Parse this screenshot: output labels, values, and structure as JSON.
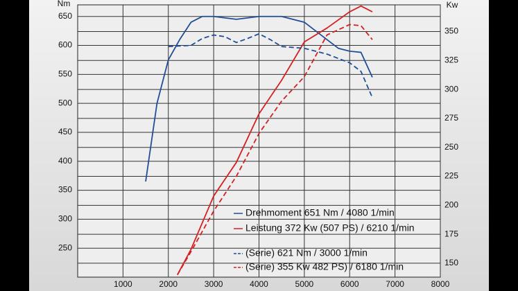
{
  "chart_data": {
    "type": "line",
    "y_label": "Nm",
    "y2_label": "Kw",
    "xlim": [
      0,
      8000
    ],
    "xticks": [
      1000,
      2000,
      3000,
      4000,
      5000,
      6000,
      7000,
      8000
    ],
    "ylim": [
      200,
      670
    ],
    "yticks": [
      250,
      300,
      350,
      400,
      450,
      500,
      550,
      600,
      650
    ],
    "y2lim": [
      138,
      373
    ],
    "y2ticks": [
      150,
      175,
      200,
      225,
      250,
      275,
      300,
      325,
      350
    ],
    "grid": true,
    "series": [
      {
        "name": "Drehmoment 651 Nm / 4080 1/min",
        "color": "#1f4e96",
        "dash": false,
        "axis": "y",
        "x": [
          1500,
          1750,
          2000,
          2250,
          2500,
          2750,
          3000,
          3500,
          4000,
          4500,
          5000,
          5500,
          5750,
          6000,
          6250,
          6500
        ],
        "values": [
          365,
          500,
          575,
          610,
          640,
          650,
          650,
          645,
          650,
          650,
          640,
          610,
          595,
          590,
          588,
          545
        ]
      },
      {
        "name": "Leistung 372 Kw (507 PS) / 6210 1/min",
        "color": "#d42020",
        "dash": false,
        "axis": "y2",
        "x": [
          2200,
          2500,
          3000,
          3500,
          4000,
          4500,
          5000,
          5500,
          6000,
          6250,
          6500
        ],
        "values": [
          140,
          162,
          208,
          237,
          279,
          308,
          341,
          353,
          367,
          372,
          367
        ]
      },
      {
        "name": "(Serie) 621 Nm / 3000 1/min",
        "color": "#1f4e96",
        "dash": true,
        "axis": "y",
        "x": [
          2000,
          2500,
          2750,
          3000,
          3250,
          3500,
          3750,
          4000,
          4250,
          4500,
          5000,
          5500,
          6000,
          6250,
          6500
        ],
        "values": [
          598,
          600,
          612,
          618,
          615,
          605,
          612,
          620,
          610,
          598,
          595,
          585,
          570,
          555,
          510
        ]
      },
      {
        "name": "(Serie) 355 Kw 482 PS) / 6180 1/min",
        "color": "#d42020",
        "dash": true,
        "axis": "y2",
        "x": [
          2200,
          2500,
          3000,
          3500,
          4000,
          4500,
          5000,
          5500,
          6000,
          6250,
          6500
        ],
        "values": [
          140,
          160,
          195,
          225,
          262,
          290,
          311,
          347,
          356,
          355,
          343
        ]
      }
    ]
  }
}
